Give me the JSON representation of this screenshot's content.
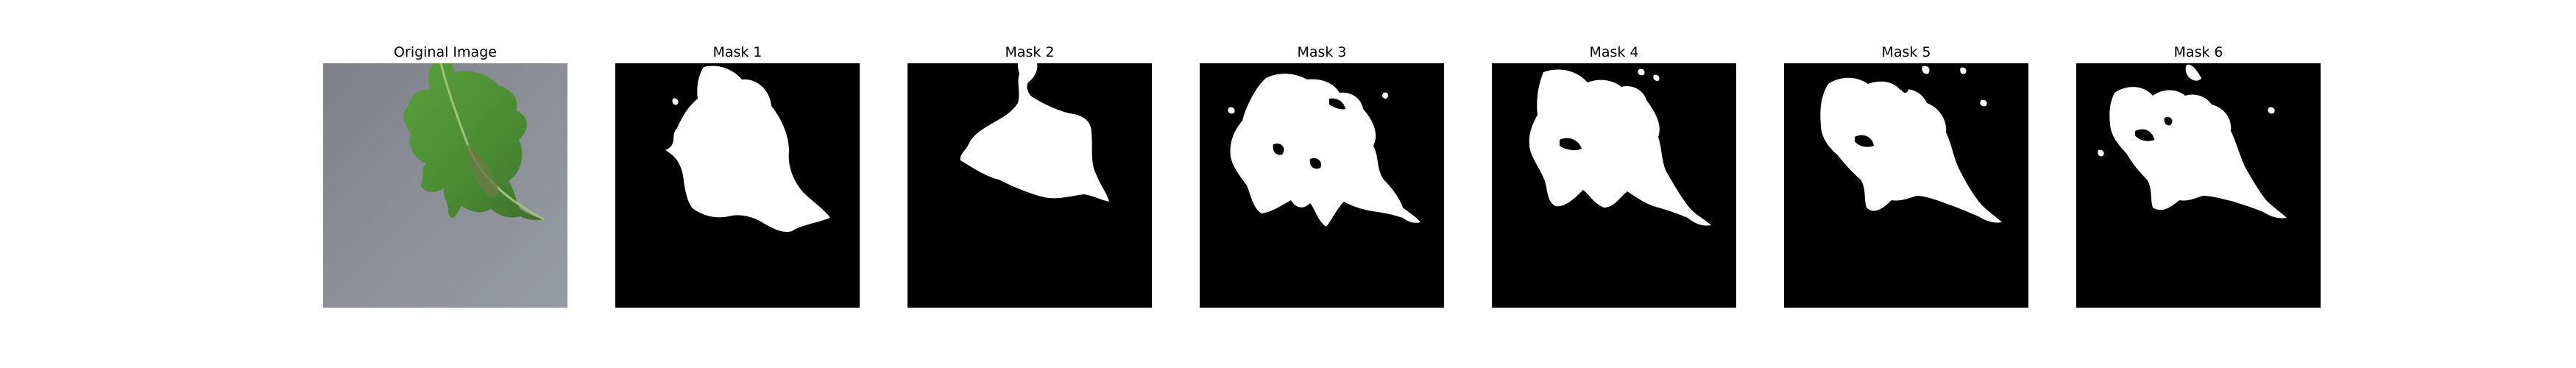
{
  "figure": {
    "panels": [
      {
        "title": "Original Image",
        "kind": "photo"
      },
      {
        "title": "Mask 1",
        "kind": "mask"
      },
      {
        "title": "Mask 2",
        "kind": "mask"
      },
      {
        "title": "Mask 3",
        "kind": "mask"
      },
      {
        "title": "Mask 4",
        "kind": "mask"
      },
      {
        "title": "Mask 5",
        "kind": "mask"
      },
      {
        "title": "Mask 6",
        "kind": "mask"
      }
    ]
  },
  "colors": {
    "background": "#ffffff",
    "mask_background": "#000000",
    "mask_foreground": "#ffffff",
    "photo_surface": "#8a8d94",
    "leaf_green": "#4e8f35"
  }
}
